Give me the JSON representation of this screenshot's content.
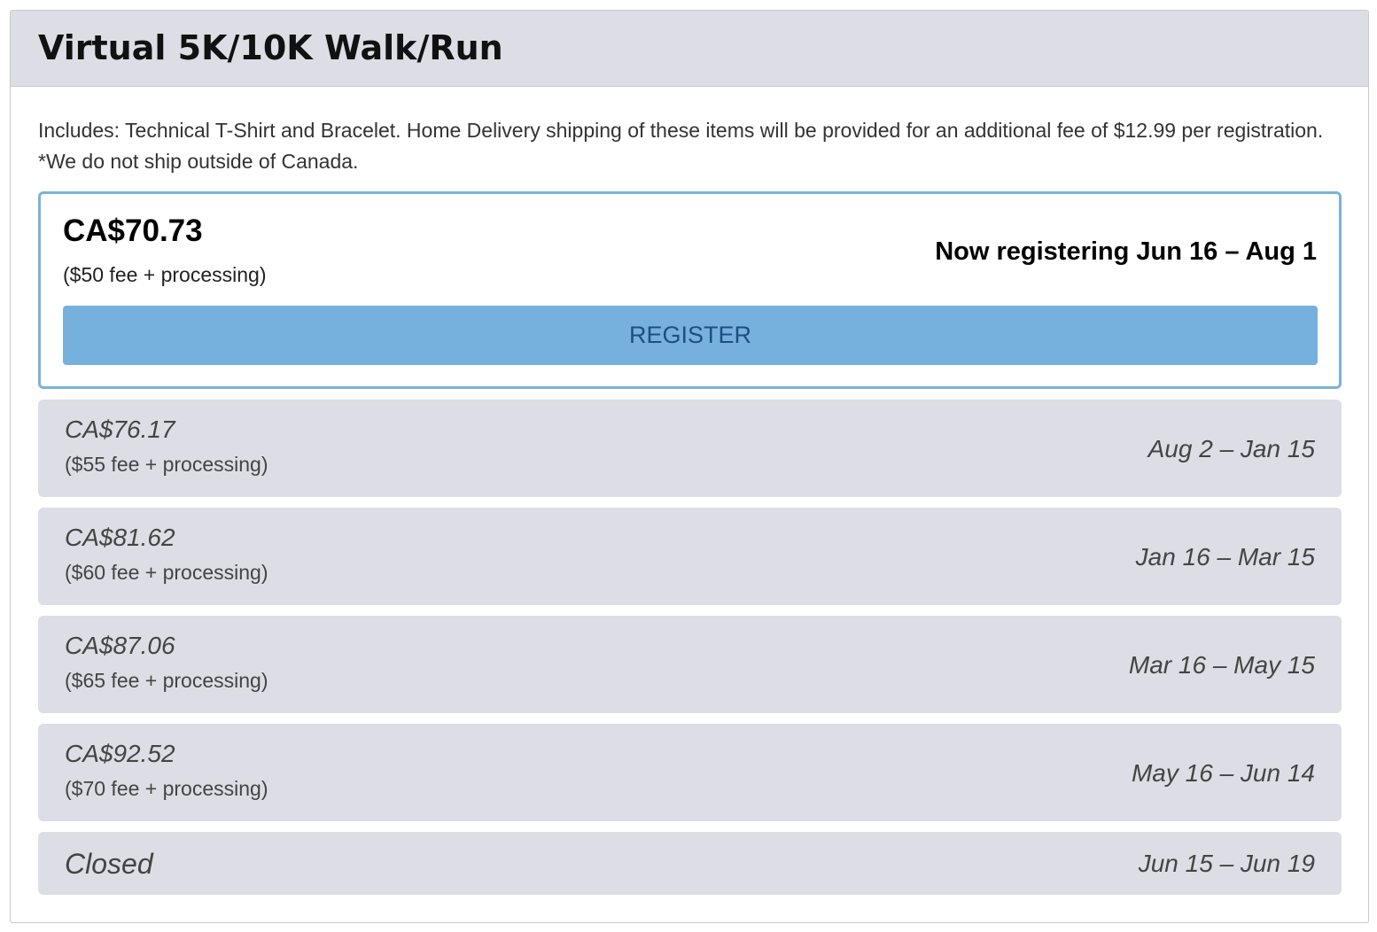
{
  "header": {
    "title": "Virtual 5K/10K Walk/Run"
  },
  "description": "Includes: Technical T-Shirt and Bracelet. Home Delivery shipping of these items will be provided for an additional fee of $12.99 per registration. *We do not ship outside of Canada.",
  "current": {
    "price": "CA$70.73",
    "note": "($50 fee + processing)",
    "status": "Now registering Jun 16 – Aug 1",
    "button": "REGISTER"
  },
  "tiers": [
    {
      "price": "CA$76.17",
      "note": "($55 fee + processing)",
      "dates": "Aug 2 – Jan 15"
    },
    {
      "price": "CA$81.62",
      "note": "($60 fee + processing)",
      "dates": "Jan 16 – Mar 15"
    },
    {
      "price": "CA$87.06",
      "note": "($65 fee + processing)",
      "dates": "Mar 16 – May 15"
    },
    {
      "price": "CA$92.52",
      "note": "($70 fee + processing)",
      "dates": "May 16 – Jun 14"
    }
  ],
  "closed": {
    "label": "Closed",
    "dates": "Jun 15 – Jun 19"
  }
}
